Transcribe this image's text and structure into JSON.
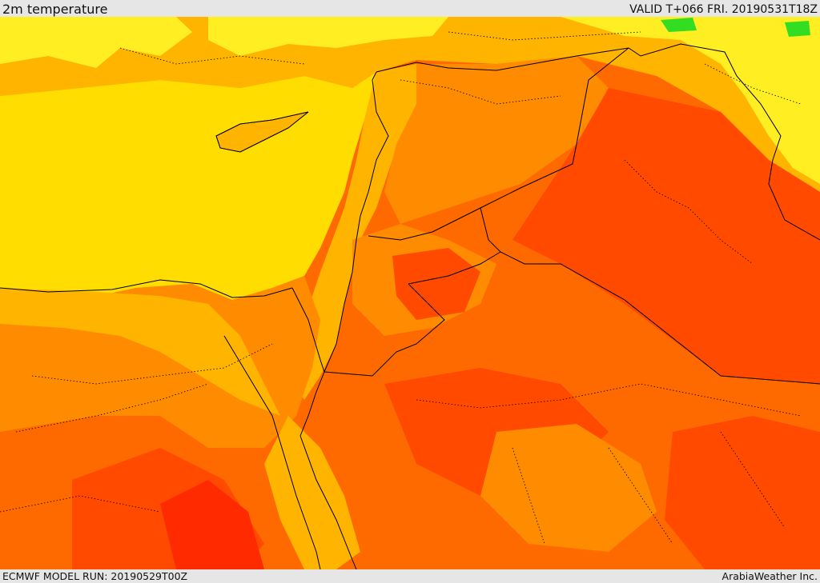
{
  "header": {
    "title": "2m temperature",
    "valid": "VALID T+066 FRI. 20190531T18Z"
  },
  "footer": {
    "model_run": "ECMWF MODEL RUN: 20190529T00Z",
    "credit": "ArabiaWeather Inc."
  },
  "map": {
    "field": "2m temperature",
    "region": "Eastern Mediterranean / Levant / Arabian Peninsula",
    "palette": {
      "sea_yellow": "#ffdd00",
      "warm_yellow": "#ffee22",
      "light_orange": "#ffb400",
      "orange": "#ff8c00",
      "dark_orange": "#ff6a00",
      "red_orange": "#ff4a00",
      "red": "#ff2a00",
      "green": "#33dd22",
      "border": "#000000"
    }
  }
}
